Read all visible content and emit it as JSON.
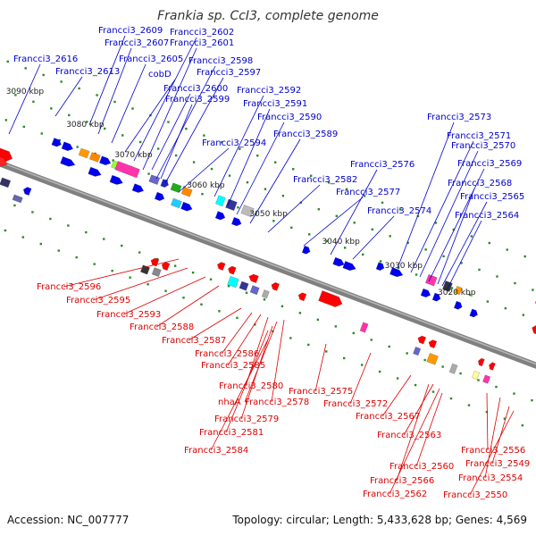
{
  "title": "Frankia sp. CcI3, complete genome",
  "footer": {
    "accession": "Accession: NC_007777",
    "summary": "Topology: circular; Length: 5,433,628 bp; Genes: 4,569"
  },
  "colors": {
    "forward_label": "#0000cc",
    "reverse_label": "#dd0000",
    "backbone": "#808080",
    "tick": "#2a8a2a"
  },
  "kbp_marks": [
    "3090 kbp",
    "3080 kbp",
    "3070 kbp",
    "3060 kbp",
    "3050 kbp",
    "3040 kbp",
    "3030 kbp",
    "3020 kbp"
  ],
  "forward_labels": [
    "Francci3_2616",
    "Francci3_2613",
    "Francci3_2609",
    "Francci3_2607",
    "Francci3_2605",
    "cobD",
    "Francci3_2602",
    "Francci3_2601",
    "Francci3_2598",
    "Francci3_2597",
    "Francci3_2600",
    "Francci3_2599",
    "Francci3_2594",
    "Francci3_2592",
    "Francci3_2591",
    "Francci3_2590",
    "Francci3_2589",
    "Francci3_2582",
    "Francci3_2577",
    "Francci3_2576",
    "Francci3_2574",
    "Francci3_2573",
    "Francci3_2571",
    "Francci3_2570",
    "Francci3_2569",
    "Francci3_2568",
    "Francci3_2565",
    "Francci3_2564"
  ],
  "reverse_labels": [
    "Francci3_2596",
    "Francci3_2595",
    "Francci3_2593",
    "Francci3_2588",
    "Francci3_2587",
    "Francci3_2586",
    "Francci3_2585",
    "Francci3_2580",
    "nhaA",
    "Francci3_2578",
    "Francci3_2579",
    "Francci3_2581",
    "Francci3_2584",
    "Francci3_2575",
    "Francci3_2572",
    "Francci3_2567",
    "Francci3_2563",
    "Francci3_2560",
    "Francci3_2566",
    "Francci3_2562",
    "Francci3_2556",
    "Francci3_2554",
    "Francci3_2549",
    "Francci3_2550"
  ]
}
